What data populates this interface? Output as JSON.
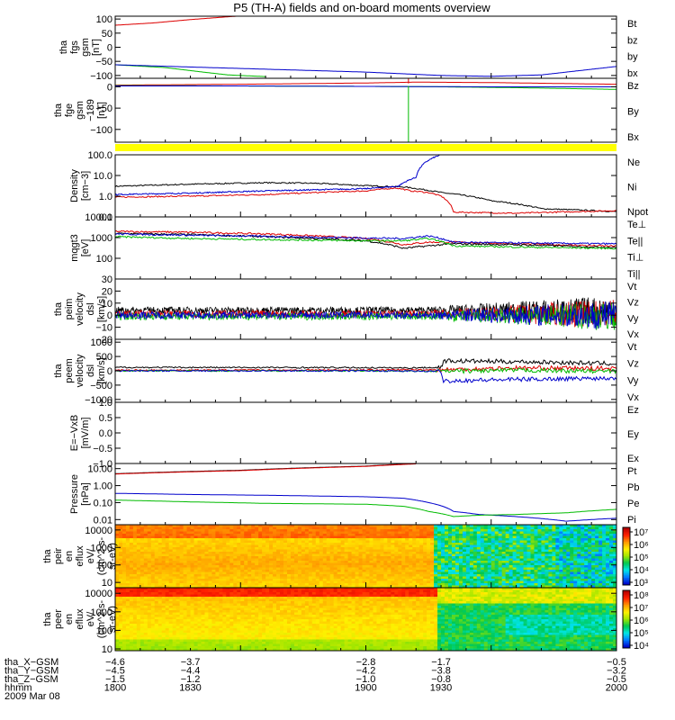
{
  "colors": {
    "black": "#000000",
    "red": "#dd0000",
    "green": "#00bb00",
    "blue": "#0000cc",
    "yellow": "#ffff00",
    "dark_red": "#990000"
  },
  "chart_data": {
    "type": "line",
    "title": "P5 (TH-A) fields and on-board moments overview",
    "panels": [
      {
        "id": "fgs",
        "ylabel_lines": [
          "tha",
          "fgs",
          "gsm",
          "[nT]"
        ],
        "scale": "linear",
        "ylim": [
          -110,
          110
        ],
        "ticks": [
          100,
          50,
          0,
          -50,
          -100
        ],
        "tick_labels": [
          "100",
          "50",
          "0",
          "−50",
          "−100"
        ],
        "legend": [
          {
            "label": "Bt",
            "color": "#000000"
          },
          {
            "label": "bz",
            "color": "#dd0000"
          },
          {
            "label": "by",
            "color": "#00bb00"
          },
          {
            "label": "bx",
            "color": "#0000cc"
          }
        ],
        "series": [
          {
            "name": "bz",
            "color": "#dd0000",
            "x": [
              1800,
              1815,
              1830,
              1845,
              1852
            ],
            "y": [
              78,
              86,
              98,
              108,
              112
            ]
          },
          {
            "name": "by",
            "color": "#00bb00",
            "x": [
              1800,
              1820,
              1835,
              1845,
              1860
            ],
            "y": [
              -62,
              -72,
              -88,
              -98,
              -104
            ]
          },
          {
            "name": "bx",
            "color": "#0000cc",
            "x": [
              1800,
              1830,
              1900,
              1930,
              1950,
              1970,
              2000
            ],
            "y": [
              -62,
              -70,
              -88,
              -100,
              -103,
              -98,
              -68
            ]
          }
        ]
      },
      {
        "id": "fge",
        "ylabel_lines": [
          "tha",
          "fge",
          "gsm",
          "−189",
          "[nT]"
        ],
        "scale": "linear",
        "ylim": [
          -130,
          20
        ],
        "ticks": [
          0,
          -50,
          -100
        ],
        "tick_labels": [
          "0",
          "−50",
          "−100"
        ],
        "legend": [
          {
            "label": "Bz",
            "color": "#dd0000"
          },
          {
            "label": "By",
            "color": "#00bb00"
          },
          {
            "label": "Bx",
            "color": "#0000cc"
          }
        ],
        "series": [
          {
            "name": "Bz",
            "color": "#dd0000",
            "x": [
              1800,
              1850,
              1900,
              1920,
              1950,
              2000
            ],
            "y": [
              4,
              6,
              9,
              11,
              10,
              6
            ]
          },
          {
            "name": "By",
            "color": "#00bb00",
            "x": [
              1800,
              1850,
              1900,
              1930,
              1960,
              2000
            ],
            "y": [
              3,
              2,
              1,
              0,
              -2,
              -6
            ]
          },
          {
            "name": "Bx",
            "color": "#0000cc",
            "x": [
              1800,
              1850,
              1900,
              1950,
              2000
            ],
            "y": [
              2,
              2,
              1,
              0,
              0
            ]
          }
        ],
        "spikes": [
          {
            "color": "#dd0000",
            "x": 1917,
            "y0": 8,
            "y1": 35
          },
          {
            "color": "#00bb00",
            "x": 1917,
            "y0": 2,
            "y1": -130
          }
        ]
      },
      {
        "id": "density",
        "ylabel_lines": [
          "Density",
          "[cm−3]"
        ],
        "scale": "log",
        "ylim": [
          0.1,
          100
        ],
        "ticks": [
          100,
          10,
          1,
          0.1
        ],
        "tick_labels": [
          "100.0",
          "10.0",
          "1.0",
          "0.1"
        ],
        "legend": [
          {
            "label": "Ne",
            "color": "#dd0000"
          },
          {
            "label": "Ni",
            "color": "#000000"
          },
          {
            "label": "Npot",
            "color": "#0000cc"
          }
        ],
        "series": [
          {
            "name": "Ni",
            "color": "#000000",
            "x": [
              1800,
              1830,
              1860,
              1880,
              1900,
              1915,
              1930,
              1950,
              1970,
              2000
            ],
            "y": [
              3,
              3.8,
              4.5,
              4.2,
              3.2,
              2.8,
              1.5,
              0.6,
              0.25,
              0.18
            ]
          },
          {
            "name": "Ne",
            "color": "#dd0000",
            "x": [
              1800,
              1830,
              1860,
              1900,
              1912,
              1918,
              1925,
              1930,
              1935,
              1960,
              2000
            ],
            "y": [
              0.9,
              1.0,
              1.2,
              1.8,
              2.5,
              1.8,
              1.5,
              1.0,
              0.17,
              0.15,
              0.2
            ]
          },
          {
            "name": "Npot",
            "color": "#0000cc",
            "x": [
              1800,
              1830,
              1860,
              1900,
              1913,
              1920,
              1930
            ],
            "y": [
              1.2,
              1.4,
              1.8,
              2.3,
              3.0,
              8,
              100
            ]
          }
        ]
      },
      {
        "id": "temperature",
        "ylabel_lines": [
          "mqgt3",
          "[eV]"
        ],
        "scale": "log",
        "ylim": [
          10,
          10000
        ],
        "ticks": [
          10000,
          1000,
          100
        ],
        "tick_labels": [
          "10000",
          "1000",
          "100"
        ],
        "legend": [
          {
            "label": "Te⊥",
            "color": "#dd0000"
          },
          {
            "label": "Te||",
            "color": "#000000"
          },
          {
            "label": "Ti⊥",
            "color": "#0000cc"
          },
          {
            "label": "Ti||",
            "color": "#00bb00"
          }
        ],
        "series": [
          {
            "name": "Te⊥",
            "color": "#dd0000",
            "x": [
              1800,
              1830,
              1860,
              1900,
              1915,
              1925,
              1935,
              1960,
              2000
            ],
            "y": [
              2000,
              1800,
              1500,
              900,
              450,
              600,
              600,
              500,
              380
            ]
          },
          {
            "name": "Te||",
            "color": "#000000",
            "x": [
              1800,
              1830,
              1860,
              1900,
              1915,
              1925,
              1935,
              1960,
              2000
            ],
            "y": [
              1600,
              1400,
              1100,
              700,
              300,
              400,
              500,
              450,
              330
            ]
          },
          {
            "name": "Ti⊥",
            "color": "#0000cc",
            "x": [
              1800,
              1830,
              1860,
              1900,
              1915,
              1925,
              1935,
              1960,
              2000
            ],
            "y": [
              1500,
              1300,
              1150,
              950,
              900,
              1200,
              600,
              550,
              500
            ]
          },
          {
            "name": "Ti||",
            "color": "#00bb00",
            "x": [
              1800,
              1830,
              1860,
              1900,
              1915,
              1925,
              1935,
              1960,
              2000
            ],
            "y": [
              1100,
              900,
              800,
              700,
              700,
              900,
              400,
              350,
              300
            ]
          }
        ]
      },
      {
        "id": "peim_velocity",
        "ylabel_lines": [
          "tha",
          "peim",
          "velocity",
          "dsl",
          "[km/s]"
        ],
        "scale": "linear",
        "ylim": [
          -20,
          30
        ],
        "ticks": [
          30,
          20,
          10,
          0,
          -10,
          -20
        ],
        "tick_labels": [
          "30",
          "20",
          "10",
          "0",
          "−10",
          "−20"
        ],
        "legend": [
          {
            "label": "Vt",
            "color": "#000000"
          },
          {
            "label": "Vz",
            "color": "#dd0000"
          },
          {
            "label": "Vy",
            "color": "#00bb00"
          },
          {
            "label": "Vx",
            "color": "#0000cc"
          }
        ],
        "series": [
          {
            "name": "Vt",
            "color": "#000000",
            "base": 4,
            "noise": 3
          },
          {
            "name": "Vz",
            "color": "#dd0000",
            "base": 1,
            "noise": 3
          },
          {
            "name": "Vy",
            "color": "#00bb00",
            "base": -1,
            "noise": 3
          },
          {
            "name": "Vx",
            "color": "#0000cc",
            "base": 0,
            "noise": 3
          }
        ]
      },
      {
        "id": "peem_velocity",
        "ylabel_lines": [
          "tha",
          "peem",
          "velocity",
          "dsl",
          "[km/s]"
        ],
        "scale": "linear",
        "ylim": [
          -1100,
          1100
        ],
        "ticks": [
          1000,
          500,
          0,
          -500,
          -1000
        ],
        "tick_labels": [
          "1000",
          "500",
          "0",
          "−500",
          "−1000"
        ],
        "legend": [
          {
            "label": "Vt",
            "color": "#000000"
          },
          {
            "label": "Vz",
            "color": "#dd0000"
          },
          {
            "label": "Vy",
            "color": "#00bb00"
          },
          {
            "label": "Vx",
            "color": "#0000cc"
          }
        ],
        "series": [
          {
            "name": "Vt",
            "color": "#000000",
            "x": [
              1800,
              1900,
              1915,
              1930,
              1931,
              1960,
              2000
            ],
            "y": [
              120,
              110,
              100,
              120,
              350,
              320,
              250
            ]
          },
          {
            "name": "Vz",
            "color": "#dd0000",
            "x": [
              1800,
              1900,
              1930,
              1960,
              2000
            ],
            "y": [
              20,
              30,
              40,
              100,
              80
            ]
          },
          {
            "name": "Vy",
            "color": "#00bb00",
            "x": [
              1800,
              1900,
              1930,
              1960,
              2000
            ],
            "y": [
              0,
              0,
              -20,
              20,
              -20
            ]
          },
          {
            "name": "Vx",
            "color": "#0000cc",
            "x": [
              1800,
              1900,
              1915,
              1930,
              1931,
              1960,
              2000
            ],
            "y": [
              0,
              0,
              -10,
              -20,
              -350,
              -300,
              -250
            ]
          }
        ]
      },
      {
        "id": "efield",
        "ylabel_lines": [
          "E=−VxB",
          "[mV/m]"
        ],
        "scale": "linear",
        "ylim": [
          -1,
          1
        ],
        "ticks": [
          1.0,
          0.5,
          0.0,
          -0.5,
          -1.0
        ],
        "tick_labels": [
          "1.0",
          "0.5",
          "0.0",
          "−0.5",
          "−1.0"
        ],
        "legend": [
          {
            "label": "Ez",
            "color": "#dd0000"
          },
          {
            "label": "Ey",
            "color": "#00bb00"
          },
          {
            "label": "Ex",
            "color": "#0000cc"
          }
        ],
        "series": []
      },
      {
        "id": "pressure",
        "ylabel_lines": [
          "Pressure",
          "[nPa]"
        ],
        "scale": "log",
        "ylim": [
          0.005,
          20
        ],
        "ticks": [
          10,
          1,
          0.1,
          0.01
        ],
        "tick_labels": [
          "10.00",
          "1.00",
          "0.10",
          "0.01"
        ],
        "legend": [
          {
            "label": "Pt",
            "color": "#000000"
          },
          {
            "label": "Pb",
            "color": "#dd0000"
          },
          {
            "label": "Pe",
            "color": "#00bb00"
          },
          {
            "label": "Pi",
            "color": "#0000cc"
          }
        ],
        "series": [
          {
            "name": "Pt",
            "color": "#000000",
            "x": [
              1800,
              1850,
              1900,
              1920
            ],
            "y": [
              5,
              8,
              14,
              20
            ]
          },
          {
            "name": "Pb",
            "color": "#dd0000",
            "x": [
              1800,
              1850,
              1900,
              1920
            ],
            "y": [
              4.8,
              7.6,
              13.5,
              19
            ]
          },
          {
            "name": "Pi",
            "color": "#0000cc",
            "x": [
              1800,
              1830,
              1860,
              1900,
              1915,
              1925,
              1935,
              1945,
              1960,
              1980,
              1990,
              2000
            ],
            "y": [
              0.35,
              0.3,
              0.27,
              0.22,
              0.18,
              0.1,
              0.03,
              0.02,
              0.015,
              0.008,
              0.01,
              0.012
            ]
          },
          {
            "name": "Pe",
            "color": "#00bb00",
            "x": [
              1800,
              1830,
              1860,
              1900,
              1915,
              1925,
              1935,
              1945,
              1960,
              1980,
              2000
            ],
            "y": [
              0.14,
              0.11,
              0.09,
              0.08,
              0.06,
              0.03,
              0.015,
              0.018,
              0.02,
              0.025,
              0.04
            ]
          }
        ]
      },
      {
        "id": "peir_eflux",
        "type": "heatmap",
        "ylabel_lines": [
          "tha",
          "peir",
          "en",
          "eflux",
          "eV/",
          "(cm^2-s-",
          "sr-eV)"
        ],
        "scale": "log",
        "ylim": [
          5,
          20000
        ],
        "ticks": [
          10000,
          1000,
          100,
          10
        ],
        "tick_labels": [
          "10000",
          "1000",
          "100",
          "10"
        ],
        "colorbar": {
          "min_exp": 3,
          "max_exp": 7,
          "labels": [
            "10⁷",
            "10⁶",
            "10⁵",
            "10⁴",
            "10³"
          ]
        }
      },
      {
        "id": "peer_eflux",
        "type": "heatmap",
        "ylabel_lines": [
          "tha",
          "peer",
          "en",
          "eflux",
          "eV/",
          "(cm^2-s-",
          "sr-eV)"
        ],
        "scale": "log",
        "ylim": [
          8,
          20000
        ],
        "ticks": [
          10000,
          1000,
          100,
          10
        ],
        "tick_labels": [
          "10000",
          "1000",
          "100",
          "10"
        ],
        "colorbar": {
          "min_exp": 4,
          "max_exp": 8,
          "labels": [
            "10⁸",
            "10⁷",
            "10⁶",
            "10⁵",
            "10⁴"
          ]
        }
      }
    ],
    "x_axis": {
      "range": [
        1800,
        2000
      ],
      "time_ticks": [
        1800,
        1830,
        1900,
        1930,
        2000
      ],
      "row_labels": [
        "tha_X−GSM",
        "tha_Y−GSM",
        "tha_Z−GSM",
        "hhmm",
        "2009 Mar 08"
      ],
      "rows": [
        [
          "−4.6",
          "−3.7",
          "−2.8",
          "−1.7",
          "−0.5"
        ],
        [
          "−4.5",
          "−4.4",
          "−4.2",
          "−3.8",
          "−3.2"
        ],
        [
          "−1.5",
          "−1.2",
          "−1.0",
          "−0.8",
          "−0.5"
        ],
        [
          "1800",
          "1830",
          "1900",
          "1930",
          "2000"
        ]
      ]
    }
  }
}
